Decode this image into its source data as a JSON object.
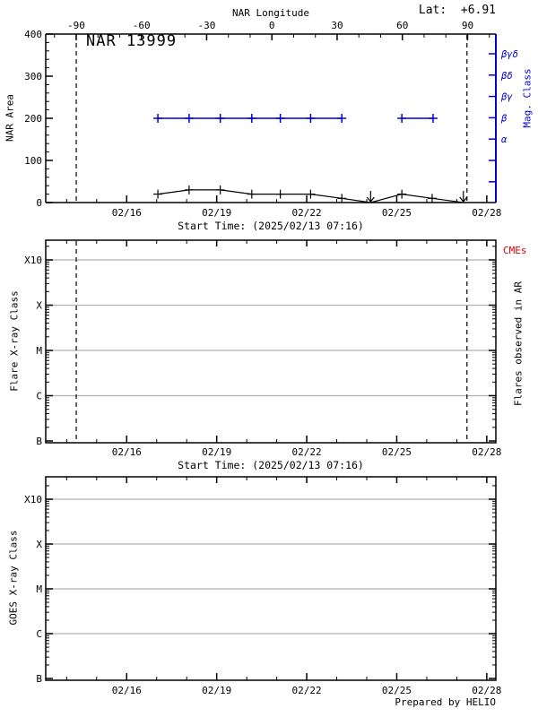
{
  "header": {
    "lat_label": "Lat:  +6.91"
  },
  "footer": {
    "credit": "Prepared by HELIO"
  },
  "colors": {
    "axis": "#000000",
    "blue": "#0000cc",
    "red": "#dd0000",
    "grid": "#b0b0b0"
  },
  "chart_data": [
    {
      "type": "line",
      "name": "nar-area-panel",
      "title": "NAR 13999",
      "ylabel": "NAR Area",
      "ylim": [
        0,
        400
      ],
      "yticks": [
        0,
        100,
        200,
        300,
        400
      ],
      "y_minor_step": 20,
      "top_axis": {
        "label": "NAR Longitude",
        "lim": [
          -104,
          103
        ],
        "ticks": [
          -90,
          -60,
          -30,
          0,
          30,
          60,
          90
        ],
        "minor_step": 10
      },
      "x_axis": {
        "label": "Start Time: (2025/02/13 07:16)",
        "start_day": 13.3028,
        "span_days": 15,
        "major": [
          {
            "day": 16,
            "label": "02/16"
          },
          {
            "day": 19,
            "label": "02/19"
          },
          {
            "day": 22,
            "label": "02/22"
          },
          {
            "day": 25,
            "label": "02/25"
          },
          {
            "day": 28,
            "label": "02/28"
          }
        ],
        "minor_days": [
          14,
          15,
          17,
          18,
          20,
          21,
          23,
          24,
          26,
          27
        ]
      },
      "right_axis": {
        "label": "Mag. Class",
        "tick_labels": [
          "βγδ",
          "βδ",
          "βγ",
          "β",
          "α",
          "",
          ""
        ]
      },
      "vlines_days": [
        14.32,
        27.34
      ],
      "series": [
        {
          "name": "nar-area",
          "color": "#000000",
          "marker": "plus",
          "zero_marker": "down-arrow",
          "points": [
            {
              "day": 17.04,
              "value": 20
            },
            {
              "day": 18.08,
              "value": 30
            },
            {
              "day": 19.12,
              "value": 30
            },
            {
              "day": 20.17,
              "value": 20
            },
            {
              "day": 21.12,
              "value": 20
            },
            {
              "day": 22.13,
              "value": 20
            },
            {
              "day": 23.17,
              "value": 10
            },
            {
              "day": 24.13,
              "value": 0
            },
            {
              "day": 25.17,
              "value": 20
            },
            {
              "day": 26.18,
              "value": 10
            },
            {
              "day": 27.22,
              "value": 0
            }
          ]
        },
        {
          "name": "mag-class",
          "color": "#0000cc",
          "marker": "plus",
          "level_label": "β",
          "level_value": 200,
          "segments": [
            [
              17.04,
              18.08,
              19.12,
              20.17,
              21.12,
              22.13,
              23.17
            ],
            [
              25.17,
              26.21
            ]
          ]
        }
      ]
    },
    {
      "type": "line",
      "name": "flare-xray-panel",
      "ylabel": "Flare X-ray Class",
      "yticks": [
        "B",
        "C",
        "M",
        "X",
        "X10"
      ],
      "right_label": "Flares observed in AR",
      "annotation": {
        "text": "CMEs",
        "color": "#dd0000"
      },
      "x_axis": {
        "label": "Start Time: (2025/02/13 07:16)",
        "start_day": 13.3028,
        "span_days": 15,
        "major": [
          {
            "day": 16,
            "label": "02/16"
          },
          {
            "day": 19,
            "label": "02/19"
          },
          {
            "day": 22,
            "label": "02/22"
          },
          {
            "day": 25,
            "label": "02/25"
          },
          {
            "day": 28,
            "label": "02/28"
          }
        ],
        "minor_days": [
          14,
          15,
          17,
          18,
          20,
          21,
          23,
          24,
          26,
          27
        ]
      },
      "vlines_days": [
        14.32,
        27.34
      ],
      "series": []
    },
    {
      "type": "line",
      "name": "goes-xray-panel",
      "ylabel": "GOES X-ray Class",
      "yticks": [
        "B",
        "C",
        "M",
        "X",
        "X10"
      ],
      "x_axis": {
        "start_day": 13.3028,
        "span_days": 15,
        "major": [
          {
            "day": 16,
            "label": "02/16"
          },
          {
            "day": 19,
            "label": "02/19"
          },
          {
            "day": 22,
            "label": "02/22"
          },
          {
            "day": 25,
            "label": "02/25"
          },
          {
            "day": 28,
            "label": "02/28"
          }
        ],
        "minor_days": [
          14,
          15,
          17,
          18,
          20,
          21,
          23,
          24,
          26,
          27
        ]
      },
      "vlines_days": [],
      "series": []
    }
  ]
}
